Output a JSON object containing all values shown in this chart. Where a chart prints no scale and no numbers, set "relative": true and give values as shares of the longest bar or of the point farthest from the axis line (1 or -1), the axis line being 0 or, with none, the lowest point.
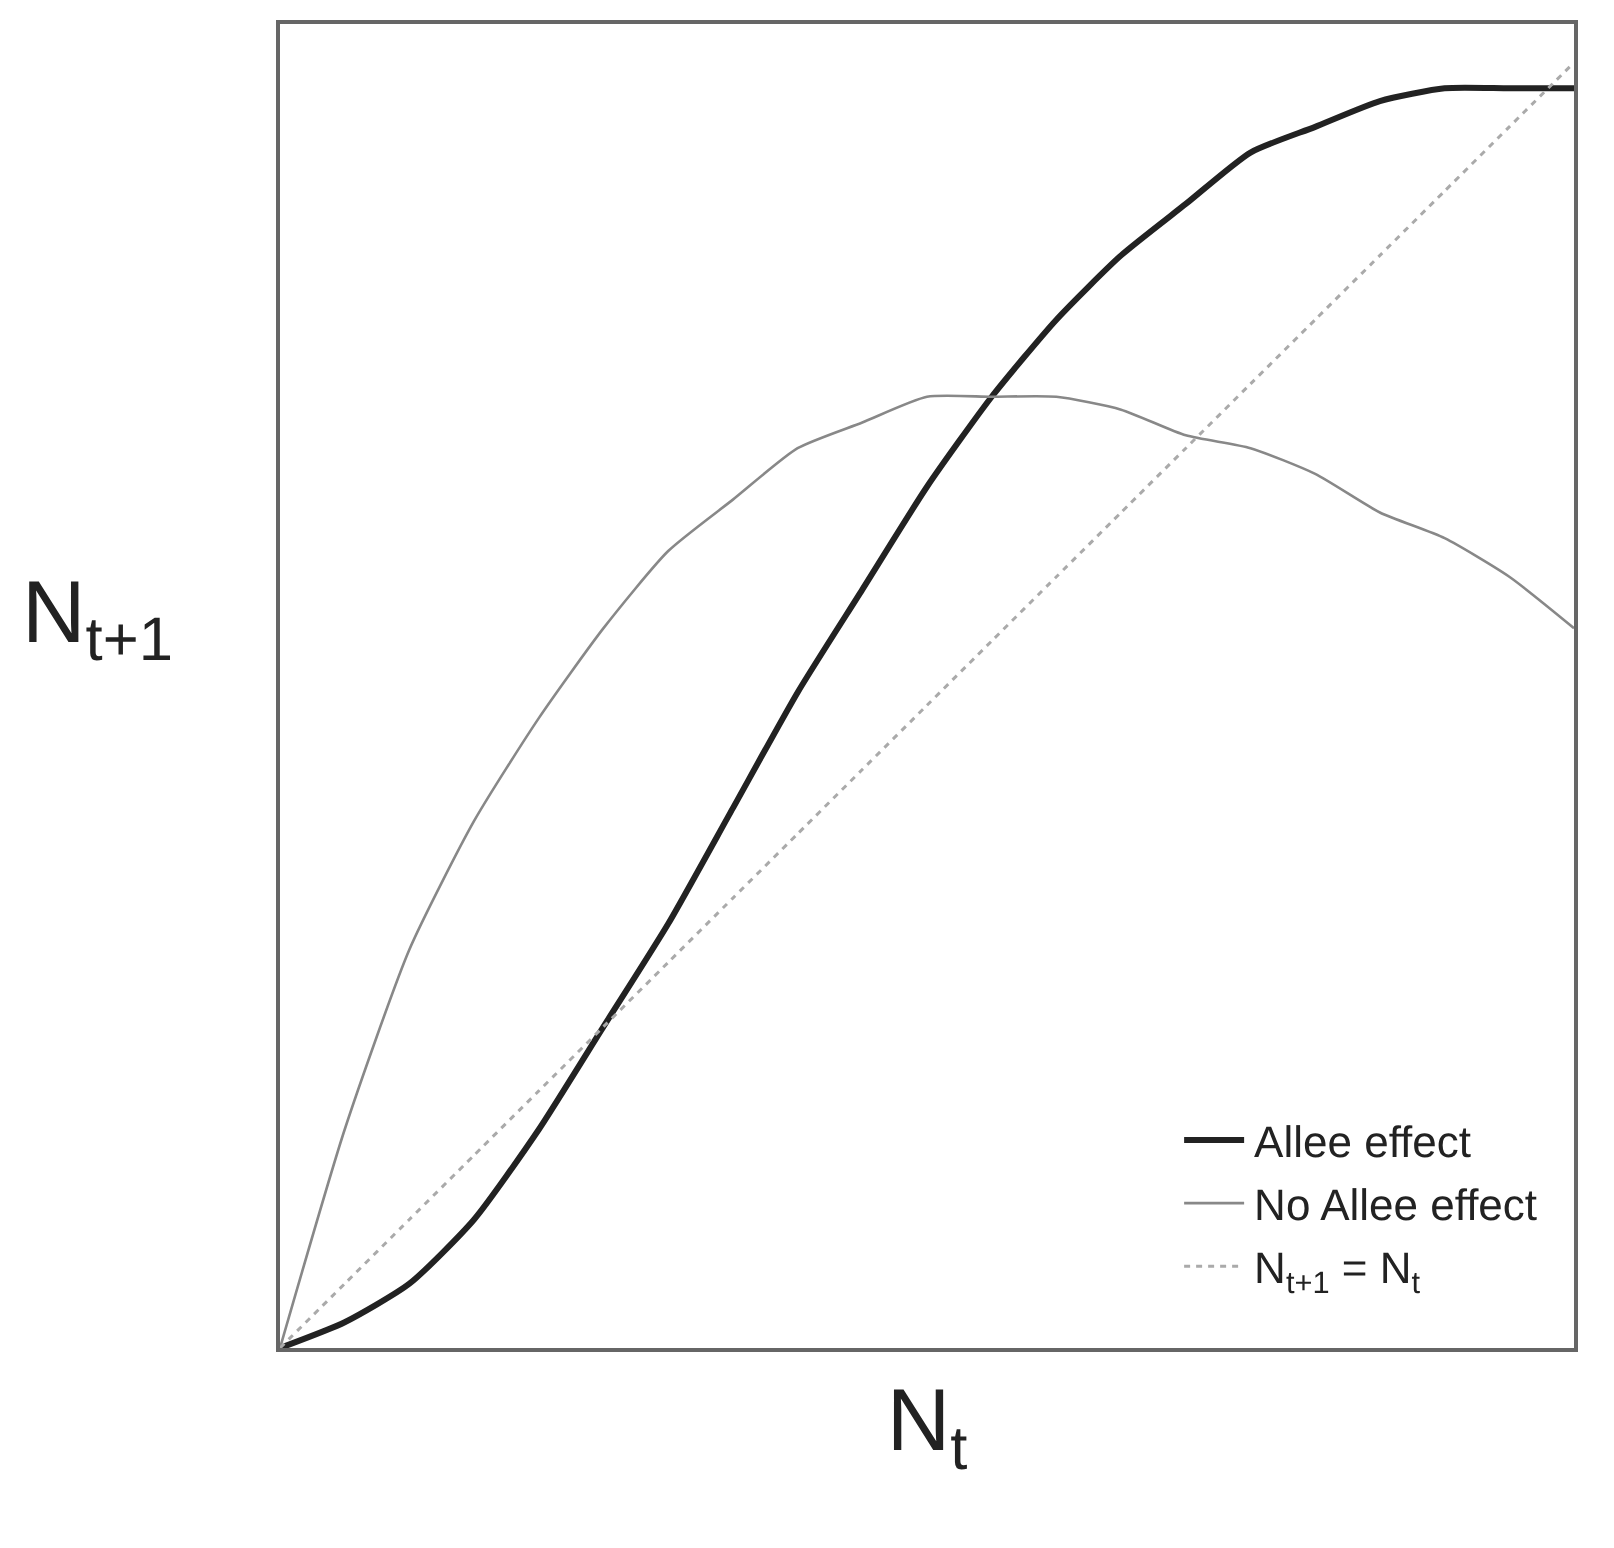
{
  "chart_data": {
    "type": "line",
    "relative": true,
    "xlabel": "N$_{t}$",
    "ylabel": "N$_{t+1}$",
    "categories": [
      null,
      null,
      null,
      null,
      null,
      null,
      null,
      null,
      null,
      null,
      null,
      null,
      null,
      null,
      null,
      null,
      null,
      null,
      null,
      null,
      null
    ],
    "series": [
      {
        "name": "Allee effect",
        "color": "#222222",
        "line_style": "solid",
        "values": [
          0,
          0.02,
          0.05,
          0.1,
          0.17,
          0.25,
          0.33,
          0.42,
          0.51,
          0.59,
          0.67,
          0.74,
          0.8,
          0.85,
          0.89,
          0.93,
          0.95,
          0.97,
          0.98,
          0.98,
          0.98
        ]
      },
      {
        "name": "No Allee effect",
        "color": "#888888",
        "line_style": "solid",
        "values": [
          0,
          0.17,
          0.31,
          0.41,
          0.49,
          0.56,
          0.62,
          0.66,
          0.7,
          0.72,
          0.74,
          0.74,
          0.74,
          0.73,
          0.71,
          0.7,
          0.68,
          0.65,
          0.63,
          0.6,
          0.56
        ]
      },
      {
        "name": "N$_{t+1}$ = N$_{t}$",
        "color": "#aaaaaa",
        "line_style": "dotted",
        "values": [
          0,
          0.05,
          0.1,
          0.15,
          0.2,
          0.25,
          0.3,
          0.35,
          0.4,
          0.45,
          0.5,
          0.55,
          0.6,
          0.65,
          0.7,
          0.75,
          0.8,
          0.85,
          0.9,
          0.95,
          1.0
        ]
      }
    ],
    "legend": "bottom right",
    "marker": "none"
  }
}
